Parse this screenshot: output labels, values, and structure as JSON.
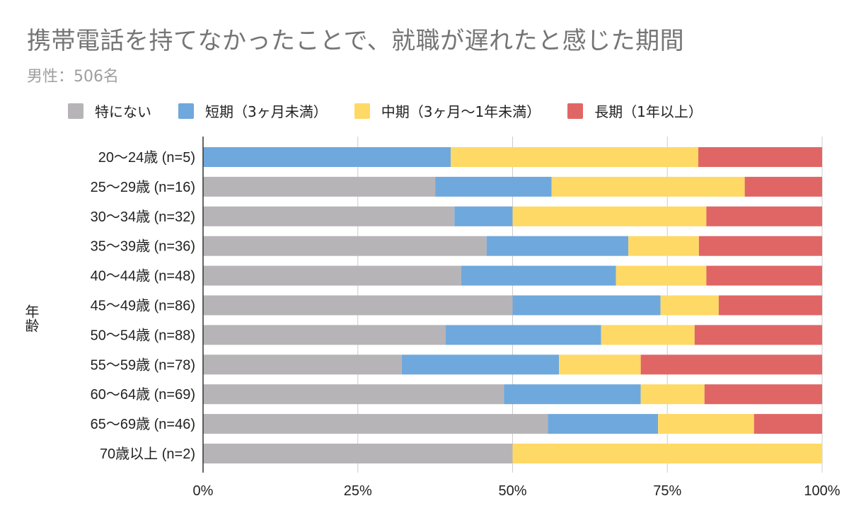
{
  "chart_data": {
    "type": "bar",
    "orientation": "horizontal",
    "stacked": "percent",
    "title": "携帯電話を持てなかったことで、就職が遅れたと感じた期間",
    "subtitle": "男性：506名",
    "ylabel": "年齢",
    "xlabel": "",
    "xlim": [
      0,
      100
    ],
    "x_ticks": [
      "0%",
      "25%",
      "50%",
      "75%",
      "100%"
    ],
    "grid": true,
    "legend_position": "top",
    "categories": [
      "20〜24歳 (n=5)",
      "25〜29歳 (n=16)",
      "30〜34歳 (n=32)",
      "35〜39歳 (n=36)",
      "40〜44歳 (n=48)",
      "45〜49歳 (n=86)",
      "50〜54歳 (n=88)",
      "55〜59歳 (n=78)",
      "60〜64歳 (n=69)",
      "65〜69歳 (n=46)",
      "70歳以上 (n=2)"
    ],
    "series": [
      {
        "name": "特にない",
        "color": "#b7b4b7",
        "values": [
          0,
          37.5,
          40.6,
          45.8,
          41.7,
          50.0,
          39.2,
          32.1,
          48.6,
          55.7,
          50.0
        ]
      },
      {
        "name": "短期（3ヶ月未満）",
        "color": "#6fa8dc",
        "values": [
          40.0,
          18.8,
          9.4,
          22.9,
          25.0,
          23.9,
          25.1,
          25.4,
          22.1,
          17.8,
          0
        ]
      },
      {
        "name": "中期（3ヶ月〜1年未満）",
        "color": "#ffd966",
        "values": [
          40.0,
          31.2,
          31.3,
          11.4,
          14.6,
          9.4,
          15.1,
          13.2,
          10.3,
          15.5,
          50.0
        ]
      },
      {
        "name": "長期（1年以上）",
        "color": "#e06666",
        "values": [
          20.0,
          12.5,
          18.7,
          19.9,
          18.7,
          16.7,
          20.6,
          29.3,
          19.0,
          11.0,
          0
        ]
      }
    ]
  }
}
